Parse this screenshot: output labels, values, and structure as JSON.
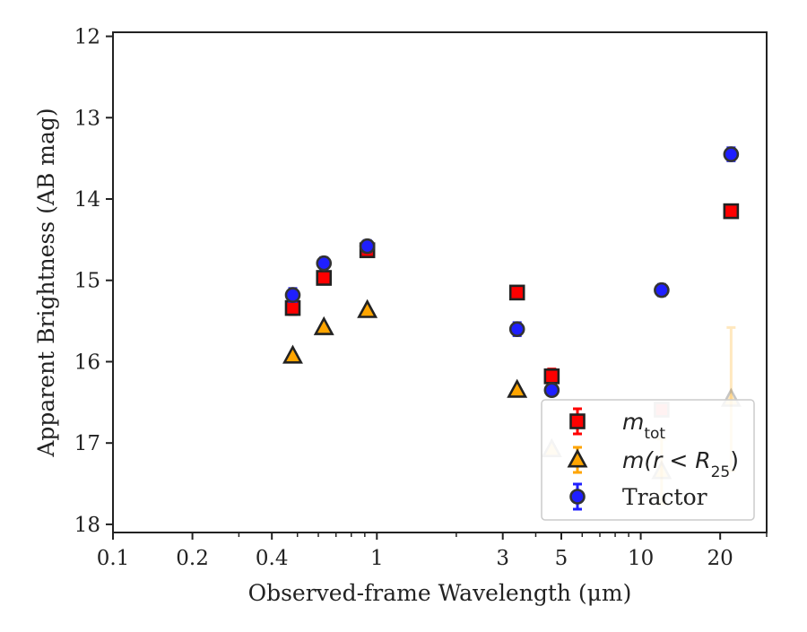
{
  "chart_data": {
    "type": "scatter",
    "xlabel": "Observed-frame Wavelength (μm)",
    "ylabel": "Apparent Brightness (AB mag)",
    "xscale": "log",
    "xlim": [
      0.1,
      30
    ],
    "ylim": [
      18.1,
      11.95
    ],
    "y_inverted": true,
    "x_ticks": [
      {
        "value": 0.1,
        "label": "0.1"
      },
      {
        "value": 0.2,
        "label": "0.2"
      },
      {
        "value": 0.4,
        "label": "0.4"
      },
      {
        "value": 1,
        "label": "1"
      },
      {
        "value": 3,
        "label": "3"
      },
      {
        "value": 5,
        "label": "5"
      },
      {
        "value": 10,
        "label": "10"
      },
      {
        "value": 20,
        "label": "20"
      }
    ],
    "x_minor_ticks": [
      0.3,
      0.5,
      0.6,
      0.7,
      0.8,
      0.9,
      2,
      4,
      6,
      7,
      8,
      9,
      30
    ],
    "y_ticks": [
      {
        "value": 12,
        "label": "12"
      },
      {
        "value": 13,
        "label": "13"
      },
      {
        "value": 14,
        "label": "14"
      },
      {
        "value": 15,
        "label": "15"
      },
      {
        "value": 16,
        "label": "16"
      },
      {
        "value": 17,
        "label": "17"
      },
      {
        "value": 18,
        "label": "18"
      }
    ],
    "grid": false,
    "legend_position": "lower-right",
    "series": [
      {
        "label_text": "m",
        "label_sub": "tot",
        "marker": "square",
        "face_color": "#ff0000",
        "edge_color": "#222222",
        "err_color": "#ff0000",
        "points": [
          {
            "x": 0.48,
            "y": 15.34,
            "err": 0.08,
            "alpha": 1
          },
          {
            "x": 0.63,
            "y": 14.97,
            "err": 0.07,
            "alpha": 1
          },
          {
            "x": 0.92,
            "y": 14.63,
            "err": 0.07,
            "alpha": 1
          },
          {
            "x": 3.4,
            "y": 15.15,
            "err": 0.06,
            "alpha": 1
          },
          {
            "x": 4.6,
            "y": 16.18,
            "err": 0.09,
            "alpha": 1
          },
          {
            "x": 12.0,
            "y": 16.59,
            "err": 0.0,
            "alpha": 0.25
          },
          {
            "x": 22.0,
            "y": 14.15,
            "err": 0.05,
            "alpha": 1
          }
        ]
      },
      {
        "label_text": "m(r < R",
        "label_sub": "25",
        "label_tail": ")",
        "marker": "triangle",
        "face_color": "#ffa500",
        "edge_color": "#222222",
        "err_color": "#ffa500",
        "points": [
          {
            "x": 0.48,
            "y": 15.93,
            "err": 0.0,
            "alpha": 1
          },
          {
            "x": 0.63,
            "y": 15.58,
            "err": 0.0,
            "alpha": 1
          },
          {
            "x": 0.92,
            "y": 15.37,
            "err": 0.0,
            "alpha": 1
          },
          {
            "x": 3.4,
            "y": 16.35,
            "err": 0.0,
            "alpha": 1
          },
          {
            "x": 4.6,
            "y": 17.08,
            "err": 0.0,
            "alpha": 0.25
          },
          {
            "x": 12.0,
            "y": 17.35,
            "err": 0.4,
            "alpha": 0.25
          },
          {
            "x": 22.0,
            "y": 16.46,
            "err": 0.88,
            "alpha": 0.25
          }
        ]
      },
      {
        "label_text": "Tractor",
        "marker": "circle",
        "face_color": "#1f1fff",
        "edge_color": "#333333",
        "err_color": "#1f1fff",
        "points": [
          {
            "x": 0.48,
            "y": 15.18,
            "err": 0.08,
            "alpha": 1
          },
          {
            "x": 0.63,
            "y": 14.79,
            "err": 0.07,
            "alpha": 1
          },
          {
            "x": 0.92,
            "y": 14.58,
            "err": 0.07,
            "alpha": 1
          },
          {
            "x": 3.4,
            "y": 15.6,
            "err": 0.08,
            "alpha": 1
          },
          {
            "x": 4.6,
            "y": 16.35,
            "err": 0.06,
            "alpha": 1
          },
          {
            "x": 12.0,
            "y": 15.12,
            "err": 0.07,
            "alpha": 1
          },
          {
            "x": 22.0,
            "y": 13.45,
            "err": 0.08,
            "alpha": 1
          }
        ]
      }
    ]
  }
}
